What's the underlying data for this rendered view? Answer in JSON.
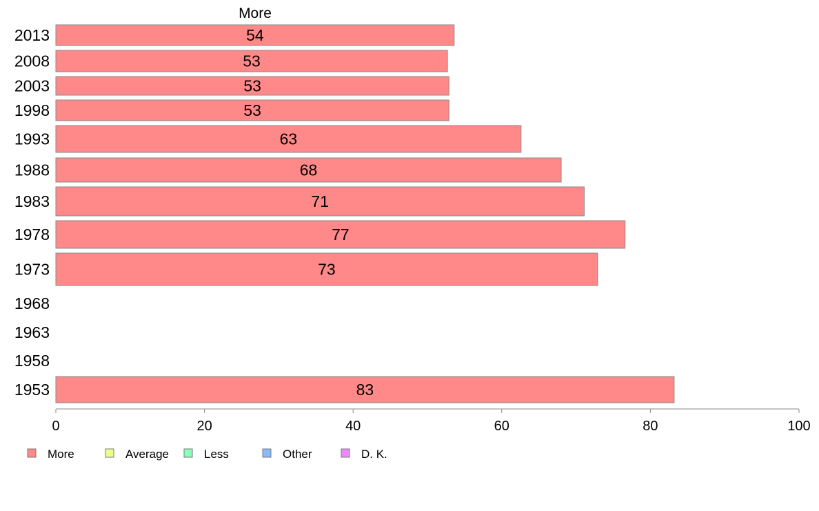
{
  "chart_data": {
    "type": "bar",
    "orientation": "horizontal",
    "series_header": "More",
    "categories": [
      "2013",
      "2008",
      "2003",
      "1998",
      "1993",
      "1988",
      "1983",
      "1978",
      "1973",
      "1968",
      "1963",
      "1958",
      "1953"
    ],
    "series": [
      {
        "name": "More",
        "color": "#ff8888",
        "values": [
          53.6,
          52.7,
          52.9,
          52.9,
          62.6,
          68.0,
          71.1,
          76.6,
          72.9,
          null,
          null,
          null,
          83.2
        ],
        "labels": [
          "54",
          "53",
          "53",
          "53",
          "63",
          "68",
          "71",
          "77",
          "73",
          "",
          "",
          "",
          "83"
        ]
      }
    ],
    "xlim": [
      0,
      100
    ],
    "xticks": [
      "0",
      "20",
      "40",
      "60",
      "80",
      "100"
    ],
    "legend": {
      "placement": "bottom-left",
      "entries": [
        {
          "label": "More",
          "color": "#ff8888"
        },
        {
          "label": "Average",
          "color": "#eeff88"
        },
        {
          "label": "Less",
          "color": "#88ffbb"
        },
        {
          "label": "Other",
          "color": "#88bbff"
        },
        {
          "label": "D. K.",
          "color": "#ee88ff"
        }
      ]
    },
    "grid": false
  }
}
